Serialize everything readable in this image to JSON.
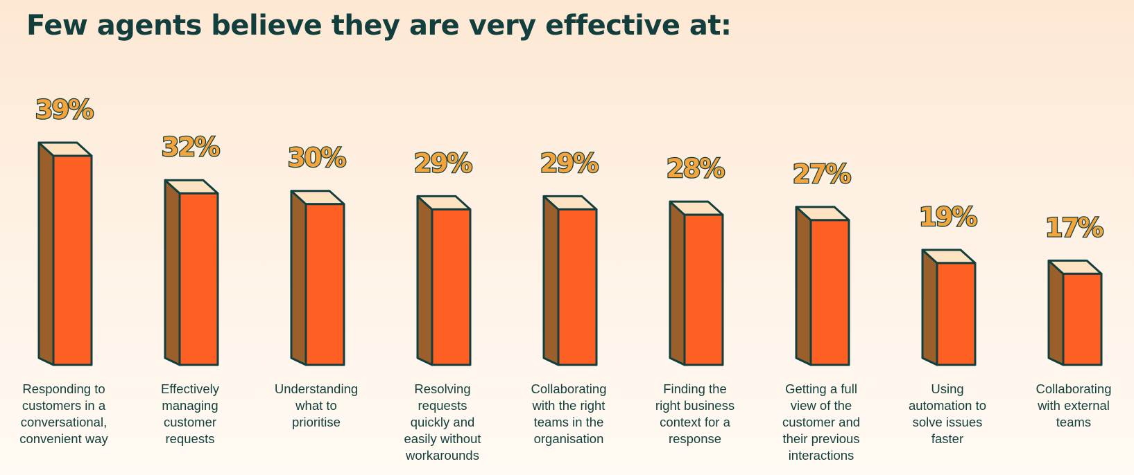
{
  "chart_data": {
    "type": "bar",
    "title": "Few agents believe they are very effective at:",
    "categories": [
      "Responding to customers in a conversational, convenient way",
      "Effectively managing customer requests",
      "Understanding what to prioritise",
      "Resolving requests quickly and easily without workarounds",
      "Collaborating with the right teams in the organisation",
      "Finding the right business context for a response",
      "Getting a full view of the customer and their previous interactions",
      "Using automation to solve issues faster",
      "Collaborating with external teams"
    ],
    "category_lines": [
      [
        "Responding to",
        "customers in a",
        "conversational,",
        "convenient way"
      ],
      [
        "Effectively",
        "managing",
        "customer",
        "requests"
      ],
      [
        "Understanding",
        "what to",
        "prioritise"
      ],
      [
        "Resolving",
        "requests",
        "quickly and",
        "easily without",
        "workarounds"
      ],
      [
        "Collaborating",
        "with the right",
        "teams in the",
        "organisation"
      ],
      [
        "Finding the",
        "right business",
        "context for a",
        "response"
      ],
      [
        "Getting a full",
        "view of the",
        "customer and",
        "their previous",
        "interactions"
      ],
      [
        "Using",
        "automation to",
        "solve issues",
        "faster"
      ],
      [
        "Collaborating",
        "with external",
        "teams"
      ]
    ],
    "values": [
      39,
      32,
      30,
      29,
      29,
      28,
      27,
      19,
      17
    ],
    "value_labels": [
      "39%",
      "32%",
      "30%",
      "29%",
      "29%",
      "28%",
      "27%",
      "19%",
      "17%"
    ],
    "unit": "%",
    "ylim": [
      0,
      39
    ],
    "grid": false,
    "legend": "none",
    "colors": {
      "bar_front": "#fe5f23",
      "bar_side": "#9b5f2b",
      "bar_top": "#fde3c1",
      "outline": "#123f3d",
      "value_label": "#f5a43c",
      "text": "#123f3d"
    }
  }
}
